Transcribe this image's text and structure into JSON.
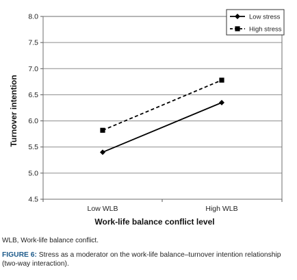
{
  "chart_data": {
    "type": "line",
    "categories": [
      "Low WLB",
      "High WLB"
    ],
    "series": [
      {
        "name": "Low stress",
        "values": [
          5.4,
          6.35
        ],
        "style": "solid",
        "marker": "diamond",
        "color": "#000000"
      },
      {
        "name": "High stress",
        "values": [
          5.82,
          6.78
        ],
        "style": "dashed",
        "marker": "square",
        "color": "#000000"
      }
    ],
    "title": "",
    "xlabel": "Work-life balance conflict level",
    "ylabel": "Turnover intention",
    "ylim": [
      4.5,
      8.0
    ],
    "yticks": [
      "4.5",
      "5.0",
      "5.5",
      "6.0",
      "6.5",
      "7.0",
      "7.5",
      "8.0"
    ],
    "grid": true,
    "legend_position": "top-right"
  },
  "footnote": "WLB, Work-life balance conflict.",
  "caption": {
    "label": "FIGURE 6:",
    "text": " Stress as a moderator on the work-life balance–turnover intention relationship (two-way interaction)."
  }
}
